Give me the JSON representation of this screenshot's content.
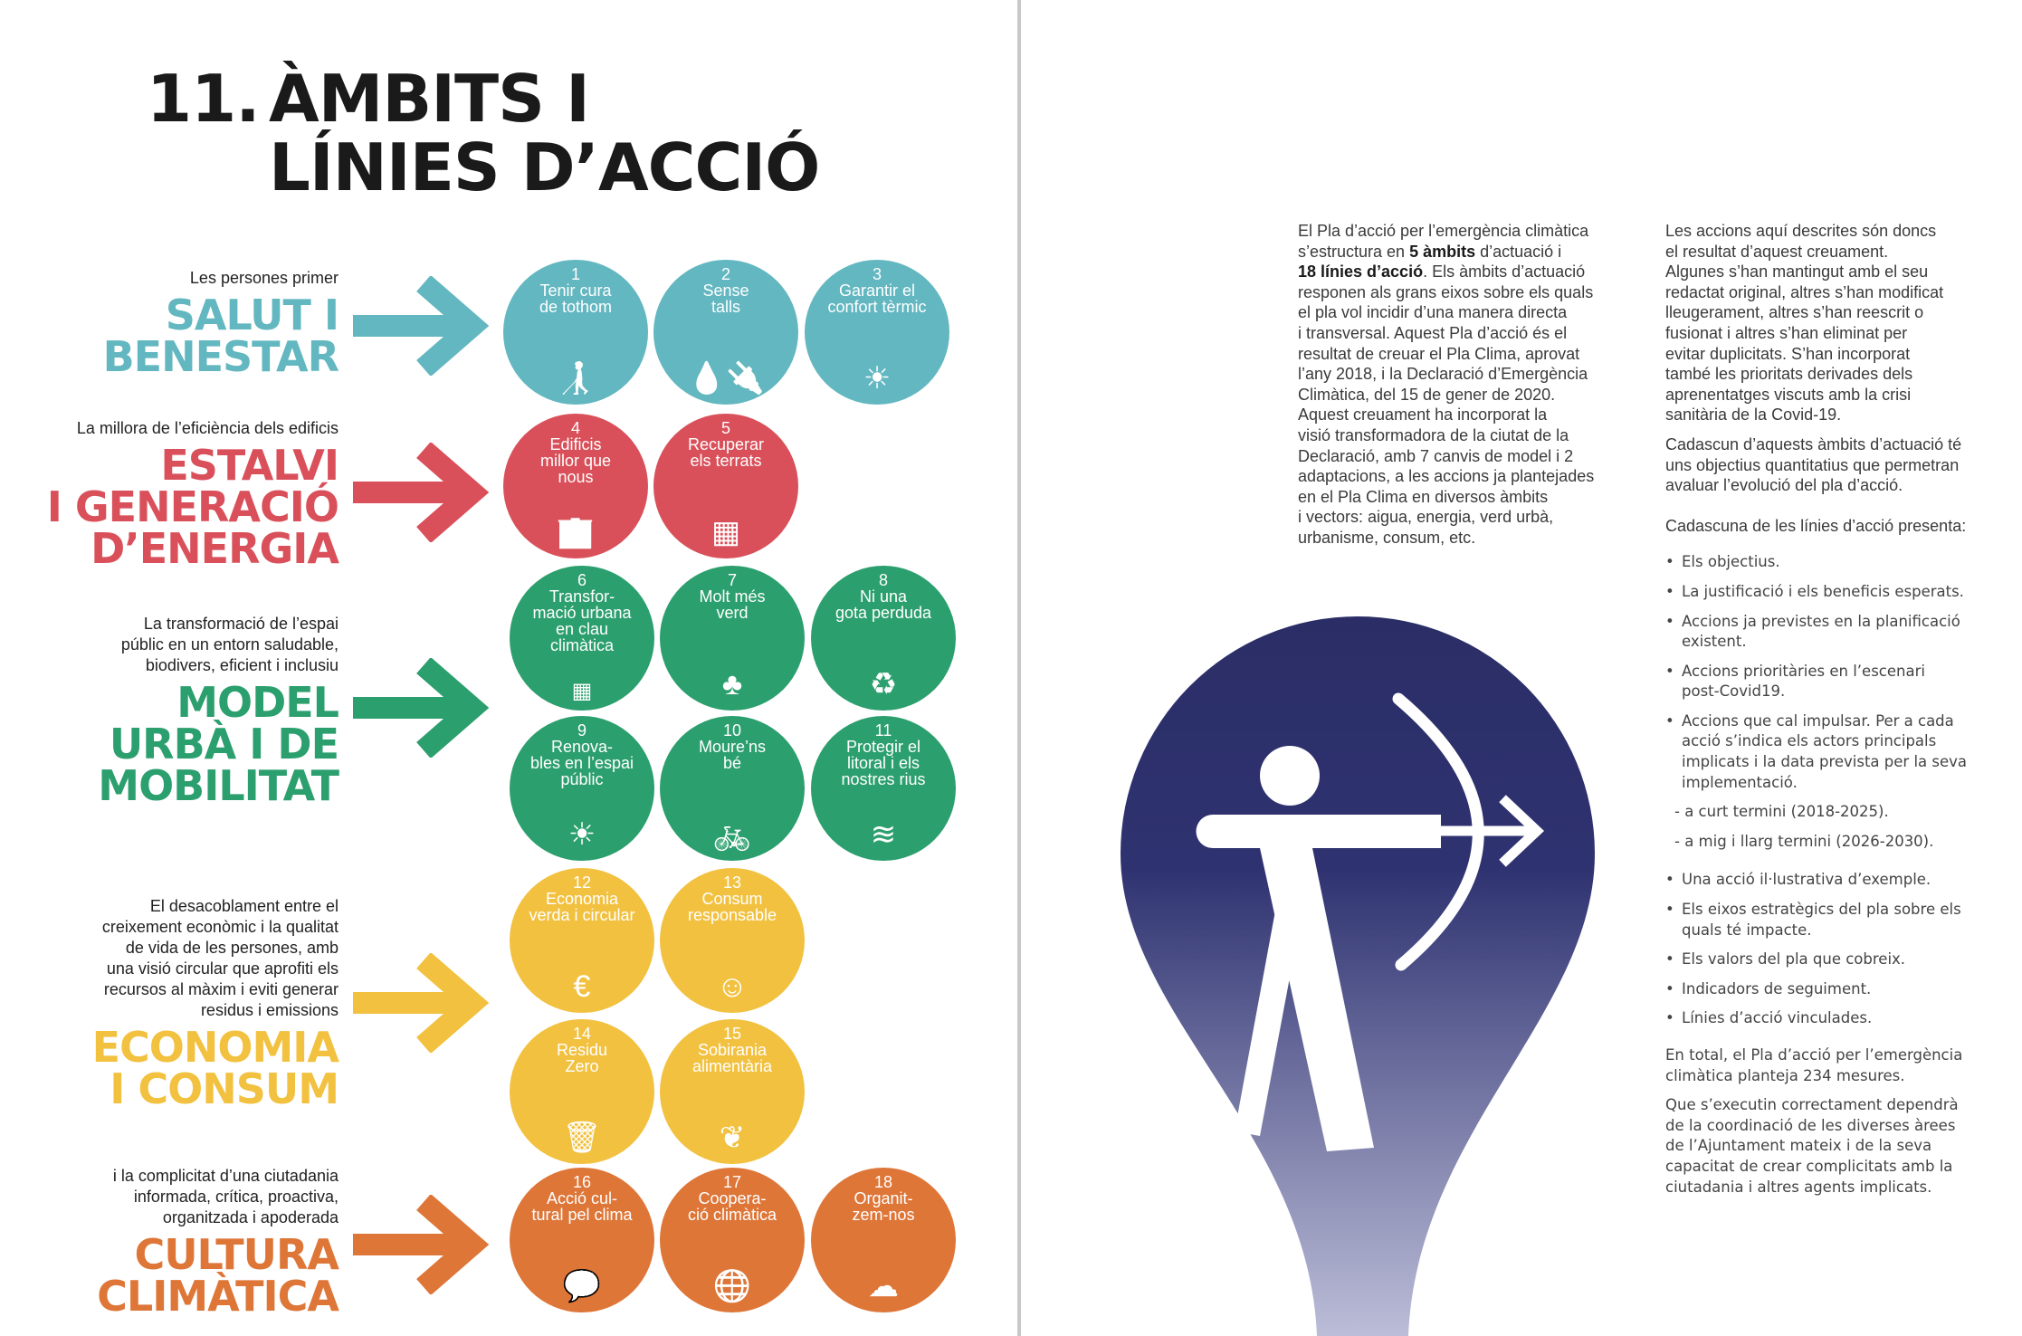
{
  "title": {
    "number": "11.",
    "lines": [
      "ÀMBITS I",
      "LÍNIES D’ACCIÓ"
    ]
  },
  "colors": {
    "salut": "#63b7c0",
    "energia": "#d9505a",
    "urba": "#2c9f6e",
    "economia": "#f2c140",
    "cultura": "#de7638",
    "shape_top": "#2b2e66",
    "shape_bottom": "#bcbdd8"
  },
  "categories": [
    {
      "id": "salut",
      "subtitle": [
        "Les persones primer"
      ],
      "title": [
        "SALUT I",
        "BENESTAR"
      ],
      "color": "#63b7c0"
    },
    {
      "id": "energia",
      "subtitle": [
        "La millora de l’eficiència dels edificis"
      ],
      "title": [
        "ESTALVI",
        "I GENERACIÓ",
        "D’ENERGIA"
      ],
      "color": "#d9505a"
    },
    {
      "id": "urba",
      "subtitle": [
        "La transformació de l’espai",
        "públic en un entorn saludable,",
        "biodivers, eficient i inclusiu"
      ],
      "title": [
        "MODEL",
        "URBÀ I DE",
        "MOBILITAT"
      ],
      "color": "#2c9f6e"
    },
    {
      "id": "economia",
      "subtitle": [
        "El desacoblament entre el",
        "creixement econòmic i la qualitat",
        "de vida de les persones, amb",
        "una visió circular que aprofiti els",
        "recursos al màxim i eviti generar",
        "residus i emissions"
      ],
      "title": [
        "ECONOMIA",
        "I CONSUM"
      ],
      "color": "#f2c140"
    },
    {
      "id": "cultura",
      "subtitle": [
        "i la complicitat d’una ciutadania",
        "informada, crítica, proactiva,",
        "organitzada i apoderada"
      ],
      "title": [
        "CULTURA",
        "CLIMÀTICA"
      ],
      "color": "#de7638"
    }
  ],
  "lines": [
    {
      "n": "1",
      "label": [
        "Tenir cura",
        "de tothom"
      ],
      "icon": "caregiver-icon",
      "cat": 0
    },
    {
      "n": "2",
      "label": [
        "Sense",
        "talls"
      ],
      "icon": "utilities-icon",
      "cat": 0
    },
    {
      "n": "3",
      "label": [
        "Garantir el",
        "confort tèrmic"
      ],
      "icon": "thermal-comfort-icon",
      "cat": 0
    },
    {
      "n": "4",
      "label": [
        "Edificis",
        "millor que",
        "nous"
      ],
      "icon": "building-icon",
      "cat": 1
    },
    {
      "n": "5",
      "label": [
        "Recuperar",
        "els terrats"
      ],
      "icon": "rooftop-icon",
      "cat": 1
    },
    {
      "n": "6",
      "label": [
        "Transfor-",
        "mació urbana",
        "en clau",
        "climàtica"
      ],
      "icon": "urban-grid-icon",
      "cat": 2
    },
    {
      "n": "7",
      "label": [
        "Molt més",
        "verd"
      ],
      "icon": "tree-icon",
      "cat": 2
    },
    {
      "n": "8",
      "label": [
        "Ni una",
        "gota perduda"
      ],
      "icon": "water-cycle-icon",
      "cat": 2
    },
    {
      "n": "9",
      "label": [
        "Renova-",
        "bles en l’espai",
        "públic"
      ],
      "icon": "solar-panel-icon",
      "cat": 2
    },
    {
      "n": "10",
      "label": [
        "Moure’ns",
        "bé"
      ],
      "icon": "walk-bike-icon",
      "cat": 2
    },
    {
      "n": "11",
      "label": [
        "Protegir el",
        "litoral i els",
        "nostres rius"
      ],
      "icon": "waves-icon",
      "cat": 2
    },
    {
      "n": "12",
      "label": [
        "Economia",
        "verda i circular"
      ],
      "icon": "euro-cycle-icon",
      "cat": 3
    },
    {
      "n": "13",
      "label": [
        "Consum",
        "responsable"
      ],
      "icon": "consumer-icon",
      "cat": 3
    },
    {
      "n": "14",
      "label": [
        "Residu",
        "Zero"
      ],
      "icon": "no-trash-icon",
      "cat": 3
    },
    {
      "n": "15",
      "label": [
        "Sobirania",
        "alimentària"
      ],
      "icon": "food-hands-icon",
      "cat": 3
    },
    {
      "n": "16",
      "label": [
        "Acció cul-",
        "tural pel clima"
      ],
      "icon": "dialogue-icon",
      "cat": 4
    },
    {
      "n": "17",
      "label": [
        "Coopera-",
        "ció climàtica"
      ],
      "icon": "cooperation-icon",
      "cat": 4
    },
    {
      "n": "18",
      "label": [
        "Organit-",
        "zem-nos"
      ],
      "icon": "hand-cloud-icon",
      "cat": 4
    }
  ],
  "intro": [
    [
      {
        "t": "El Pla d’acció per l’emergència climàtica"
      }
    ],
    [
      {
        "t": "s’estructura en "
      },
      {
        "t": "5 àmbits",
        "b": true
      },
      {
        "t": " d’actuació i"
      }
    ],
    [
      {
        "t": "18 línies d’acció",
        "b": true
      },
      {
        "t": ". Els àmbits d’actuació"
      }
    ],
    [
      {
        "t": "responen als grans eixos sobre els quals"
      }
    ],
    [
      {
        "t": "el pla vol incidir d’una manera directa"
      }
    ],
    [
      {
        "t": "i transversal. Aquest Pla d’acció és el"
      }
    ],
    [
      {
        "t": "resultat de creuar el Pla Clima, aprovat"
      }
    ],
    [
      {
        "t": "l’any 2018, i la Declaració d’Emergència"
      }
    ],
    [
      {
        "t": "Climàtica, del 15 de gener de 2020."
      }
    ],
    [
      {
        "t": "Aquest creuament ha incorporat la"
      }
    ],
    [
      {
        "t": "visió transformadora de la ciutat de la"
      }
    ],
    [
      {
        "t": "Declaració, amb 7 canvis de model i 2"
      }
    ],
    [
      {
        "t": "adaptacions, a les accions ja plantejades"
      }
    ],
    [
      {
        "t": "en el Pla Clima en diversos àmbits"
      }
    ],
    [
      {
        "t": "i vectors: aigua, energia, verd urbà,"
      }
    ],
    [
      {
        "t": "urbanisme, consum, etc."
      }
    ]
  ],
  "right_column": {
    "p1": [
      "Les accions aquí descrites són doncs",
      "el resultat d’aquest creuament.",
      "Algunes s’han mantingut amb el seu",
      "redactat original, altres s’han modificat",
      "lleugerament, altres s’han reescrit o",
      "fusionat i  altres s’han eliminat per",
      "evitar duplicitats. S’han incorporat",
      "també les prioritats derivades dels",
      "aprenentatges viscuts amb la crisi",
      "sanitària de la Covid-19."
    ],
    "p2": [
      "Cadascun d’aquests àmbits d’actuació té",
      "uns objectius quantitatius que permetran",
      "avaluar l’evolució del pla d’acció."
    ],
    "p3": [
      "Cadascuna de les línies d’acció presenta:"
    ],
    "bullets_a": [
      [
        "Els objectius."
      ],
      [
        "La justificació i els beneficis esperats."
      ],
      [
        "Accions ja previstes en la planificació",
        "existent."
      ],
      [
        "Accions prioritàries en l’escenari",
        "post-Covid19."
      ],
      [
        "Accions que cal impulsar. Per a cada",
        "acció s’indica els actors principals",
        "implicats i la data prevista per la seva",
        "implementació."
      ]
    ],
    "subitems": [
      "- a curt termini (2018-2025).",
      "- a mig i llarg termini (2026-2030)."
    ],
    "bullets_b": [
      [
        "Una acció il·lustrativa d’exemple."
      ],
      [
        "Els eixos estratègics del pla sobre els",
        "quals té impacte."
      ],
      [
        "Els valors del pla que cobreix."
      ],
      [
        "Indicadors de seguiment."
      ],
      [
        "Línies d’acció vinculades."
      ]
    ],
    "p4": [
      "En total, el Pla d’acció per l’emergència",
      "climàtica planteja 234 mesures."
    ],
    "p5": [
      "Que s’executin correctament dependrà",
      "de la coordinació de les diverses àrees",
      "de l’Ajuntament mateix i de la seva",
      "capacitat de crear complicitats amb la",
      "ciutadania i altres agents implicats."
    ]
  }
}
